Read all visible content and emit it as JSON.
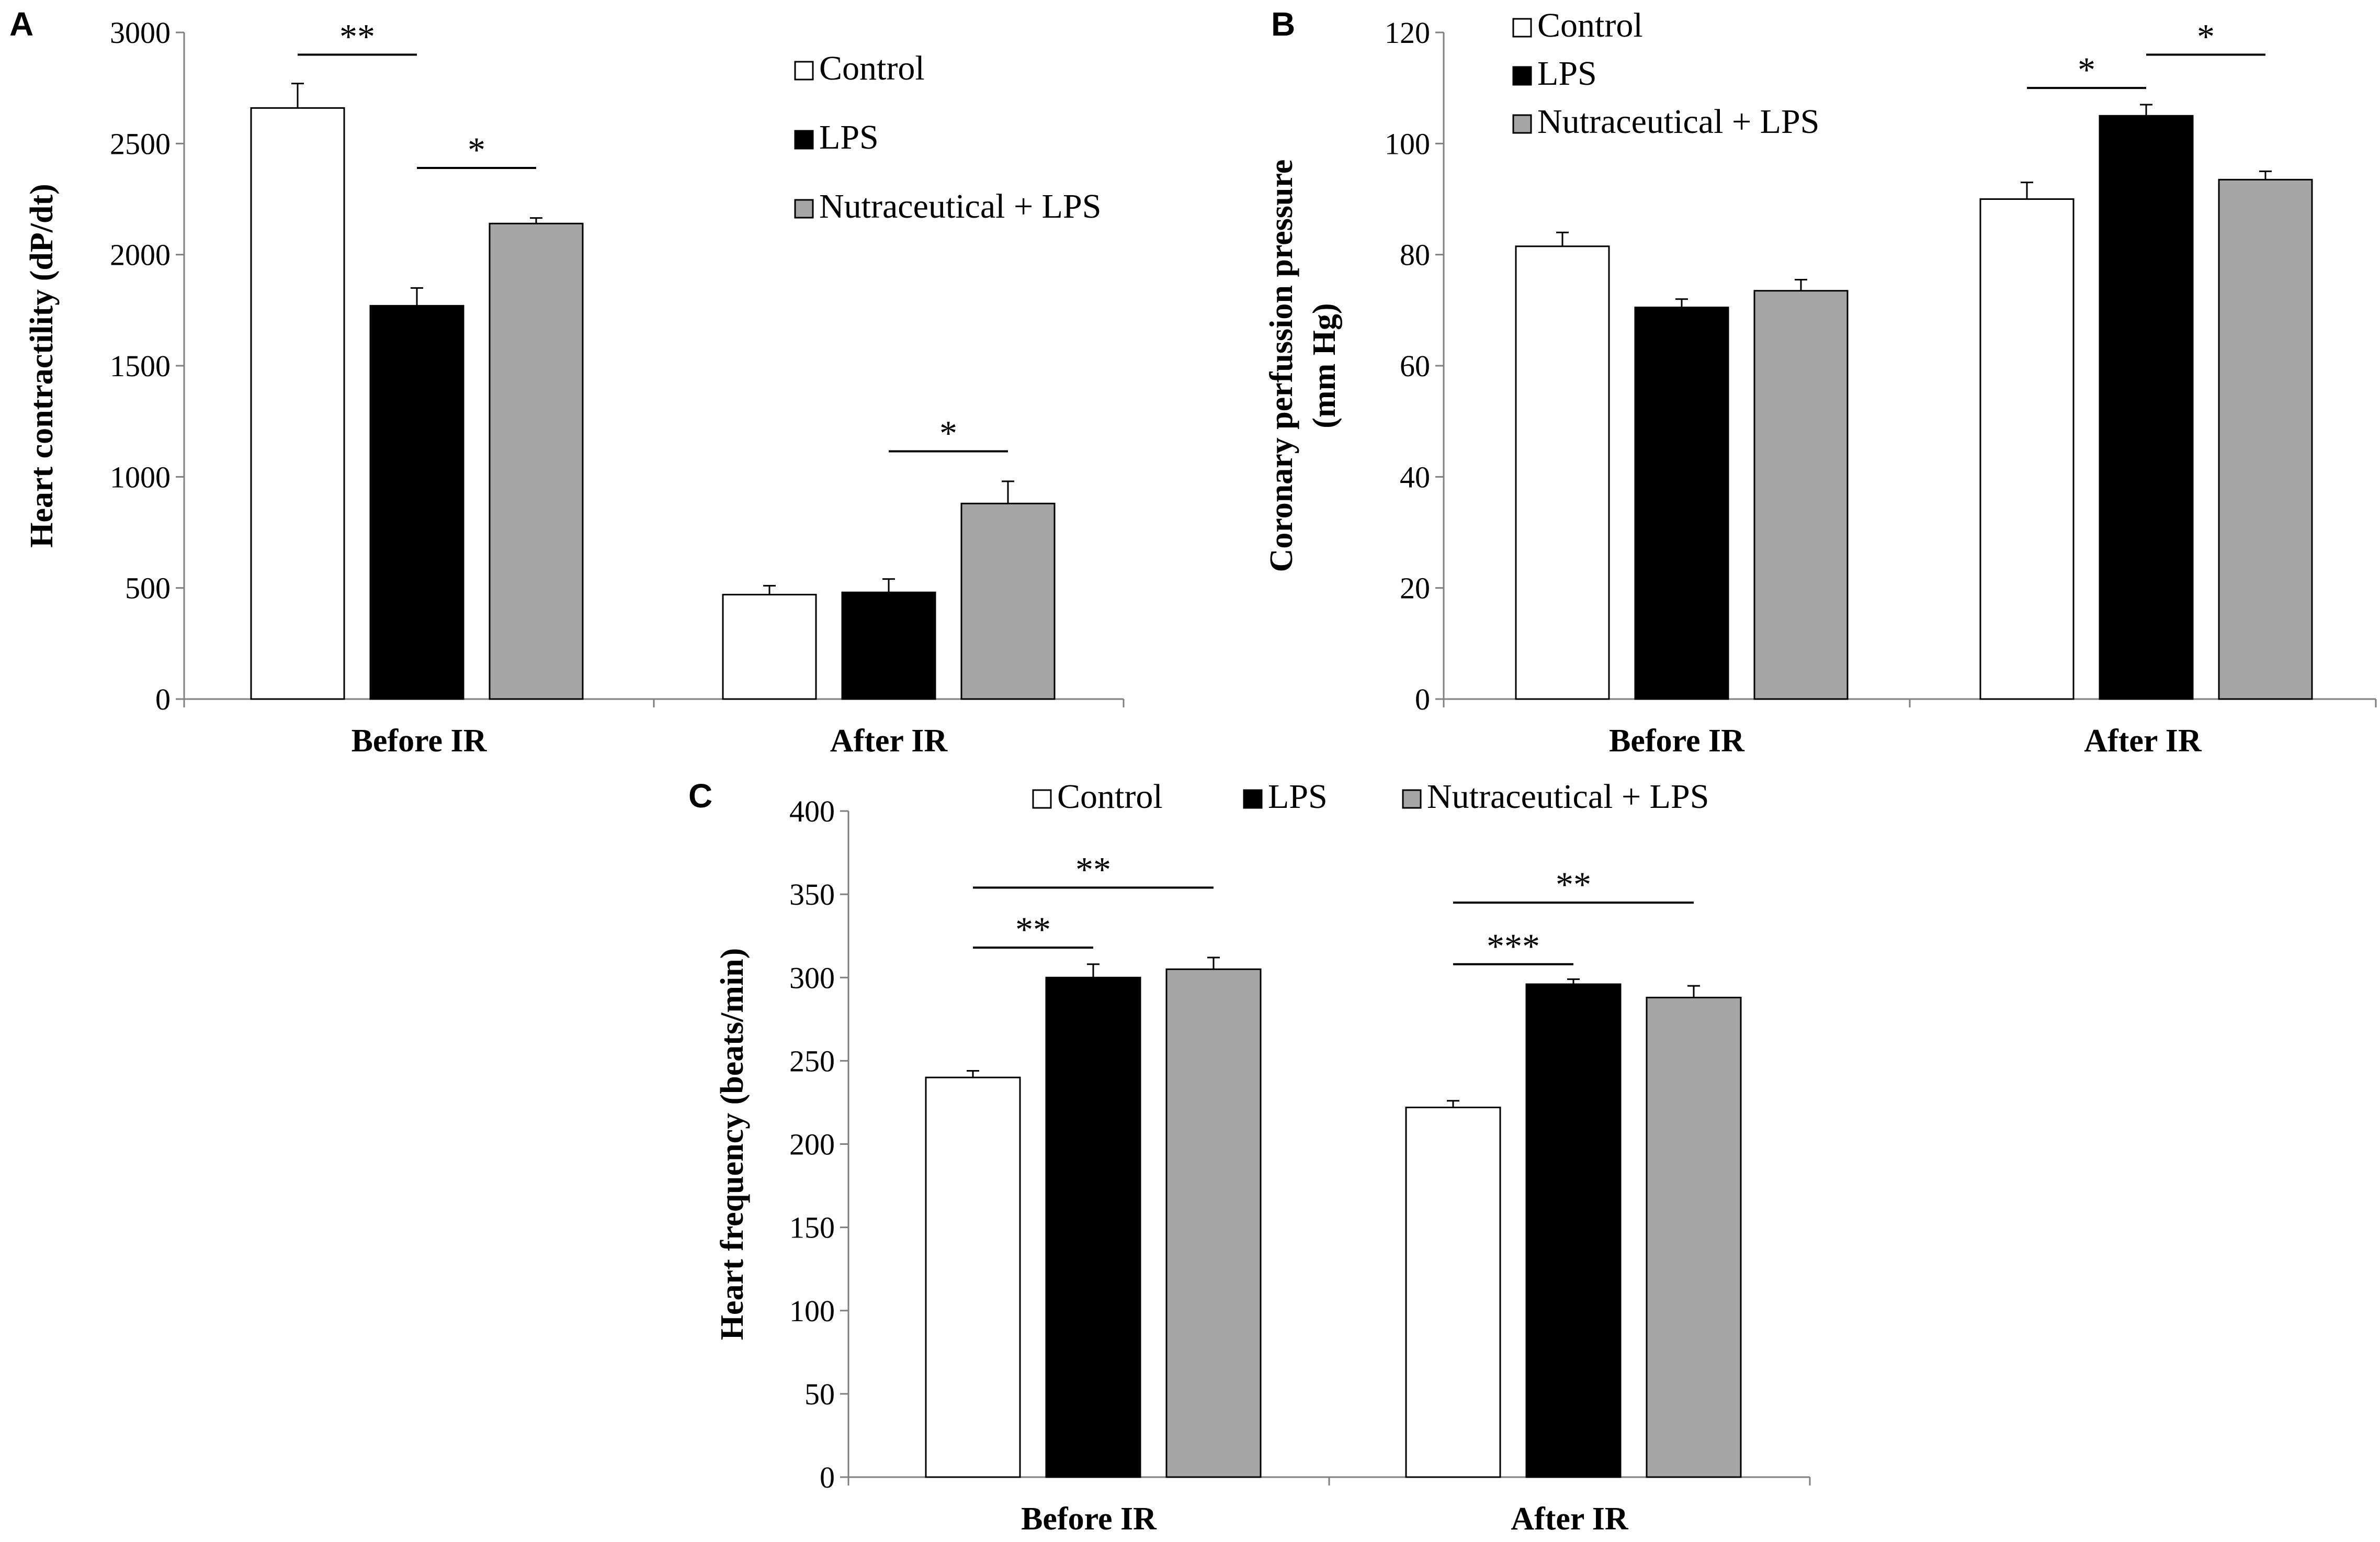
{
  "figure": {
    "legend_labels": [
      "Control",
      "LPS",
      "Nutraceutical + LPS"
    ],
    "series_colors": [
      "#ffffff",
      "#000000",
      "#a6a6a6"
    ]
  },
  "chart_data": [
    {
      "panel": "A",
      "type": "bar",
      "ylabel": "Heart contractility (dP/dt)",
      "xlabel": "",
      "ylim": [
        0,
        3000
      ],
      "yticks": [
        0,
        500,
        1000,
        1500,
        2000,
        2500,
        3000
      ],
      "categories": [
        "Before IR",
        "After IR"
      ],
      "series": [
        {
          "name": "Control",
          "values": [
            2660,
            470
          ],
          "errors": [
            110,
            40
          ]
        },
        {
          "name": "LPS",
          "values": [
            1770,
            480
          ],
          "errors": [
            80,
            60
          ]
        },
        {
          "name": "Nutraceutical + LPS",
          "values": [
            2140,
            880
          ],
          "errors": [
            25,
            100
          ]
        }
      ],
      "legend_placement": "top-right",
      "significance": [
        {
          "label": "**",
          "category": 0,
          "from_series": 0,
          "to_series": 1,
          "y": 2900
        },
        {
          "label": "*",
          "category": 0,
          "from_series": 1,
          "to_series": 2,
          "y": 2390
        },
        {
          "label": "*",
          "category": 1,
          "from_series": 1,
          "to_series": 2,
          "y": 1115
        }
      ]
    },
    {
      "panel": "B",
      "type": "bar",
      "ylabel_lines": [
        "Coronary perfussion pressure",
        "(mm Hg)"
      ],
      "xlabel": "",
      "ylim": [
        0,
        120
      ],
      "yticks": [
        0,
        20,
        40,
        60,
        80,
        100,
        120
      ],
      "categories": [
        "Before IR",
        "After IR"
      ],
      "series": [
        {
          "name": "Control",
          "values": [
            81.5,
            90
          ],
          "errors": [
            2.5,
            3
          ]
        },
        {
          "name": "LPS",
          "values": [
            70.5,
            105
          ],
          "errors": [
            1.5,
            2
          ]
        },
        {
          "name": "Nutraceutical + LPS",
          "values": [
            73.5,
            93.5
          ],
          "errors": [
            2,
            1.5
          ]
        }
      ],
      "legend_placement": "top-left",
      "significance": [
        {
          "label": "*",
          "category": 1,
          "from_series": 0,
          "to_series": 1,
          "y": 110
        },
        {
          "label": "*",
          "category": 1,
          "from_series": 1,
          "to_series": 2,
          "y": 116
        }
      ]
    },
    {
      "panel": "C",
      "type": "bar",
      "ylabel": "Heart frequency (beats/min)",
      "xlabel": "",
      "ylim": [
        0,
        400
      ],
      "yticks": [
        0,
        50,
        100,
        150,
        200,
        250,
        300,
        350,
        400
      ],
      "categories": [
        "Before IR",
        "After IR"
      ],
      "series": [
        {
          "name": "Control",
          "values": [
            240,
            222
          ],
          "errors": [
            4,
            4
          ]
        },
        {
          "name": "LPS",
          "values": [
            300,
            296
          ],
          "errors": [
            8,
            3
          ]
        },
        {
          "name": "Nutraceutical + LPS",
          "values": [
            305,
            288
          ],
          "errors": [
            7,
            7
          ]
        }
      ],
      "legend_placement": "top-center",
      "significance": [
        {
          "label": "**",
          "category": 0,
          "from_series": 0,
          "to_series": 2,
          "y": 354
        },
        {
          "label": "**",
          "category": 0,
          "from_series": 0,
          "to_series": 1,
          "y": 318
        },
        {
          "label": "**",
          "category": 1,
          "from_series": 0,
          "to_series": 2,
          "y": 345
        },
        {
          "label": "***",
          "category": 1,
          "from_series": 0,
          "to_series": 1,
          "y": 308
        }
      ]
    }
  ]
}
